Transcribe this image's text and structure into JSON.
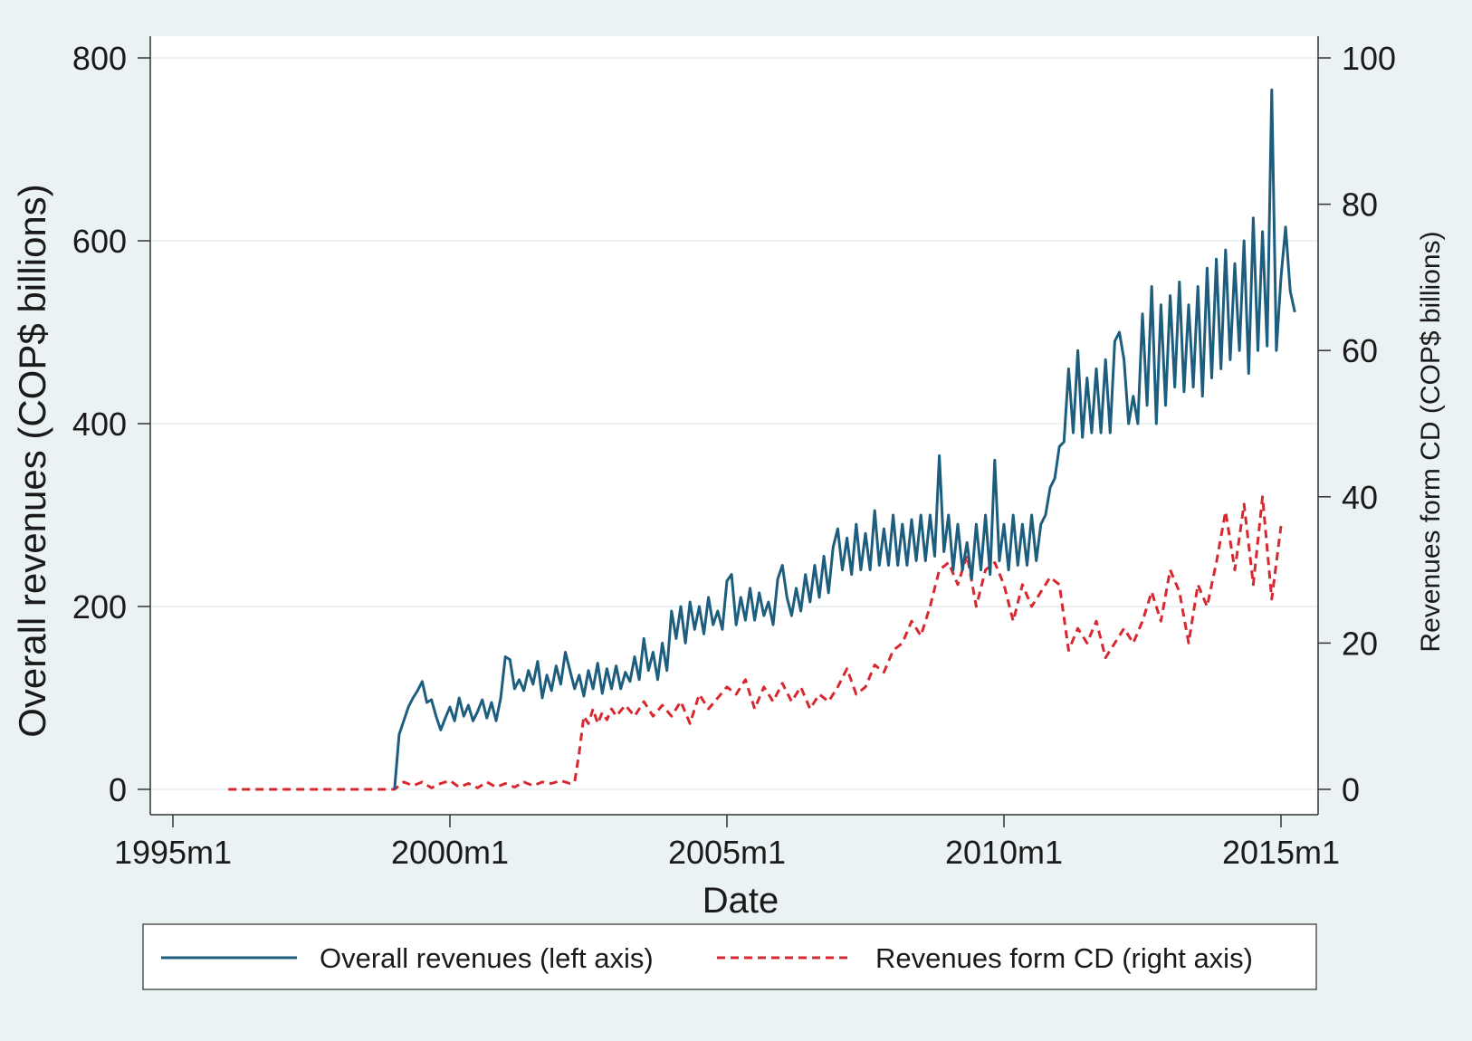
{
  "chart_data": {
    "type": "line",
    "title": "",
    "xlabel": "Date",
    "ylabel_left": "Overall revenues (COP$ billions)",
    "ylabel_right": "Revenues form CD (COP$ billions)",
    "x_ticks": [
      "1995m1",
      "2000m1",
      "2005m1",
      "2010m1",
      "2015m1"
    ],
    "xlim": [
      "1995m1",
      "2015m5"
    ],
    "y_left_ticks": [
      "0",
      "200",
      "400",
      "600",
      "800"
    ],
    "ylim_left": [
      0,
      800
    ],
    "y_right_ticks": [
      "0",
      "20",
      "40",
      "60",
      "80",
      "100"
    ],
    "ylim_right": [
      0,
      100
    ],
    "grid": true,
    "legend_position": "bottom",
    "series": [
      {
        "name": "Overall revenues (left axis)",
        "axis": "left",
        "color": "#1d5d7e",
        "style": "solid",
        "points": [
          [
            "1999m1",
            0
          ],
          [
            "1999m2",
            60
          ],
          [
            "1999m3",
            75
          ],
          [
            "1999m4",
            90
          ],
          [
            "1999m5",
            100
          ],
          [
            "1999m6",
            108
          ],
          [
            "1999m7",
            118
          ],
          [
            "1999m8",
            95
          ],
          [
            "1999m9",
            98
          ],
          [
            "1999m10",
            80
          ],
          [
            "1999m11",
            65
          ],
          [
            "1999m12",
            78
          ],
          [
            "2000m1",
            90
          ],
          [
            "2000m2",
            75
          ],
          [
            "2000m3",
            100
          ],
          [
            "2000m4",
            80
          ],
          [
            "2000m5",
            92
          ],
          [
            "2000m6",
            75
          ],
          [
            "2000m7",
            85
          ],
          [
            "2000m8",
            98
          ],
          [
            "2000m9",
            78
          ],
          [
            "2000m10",
            95
          ],
          [
            "2000m11",
            75
          ],
          [
            "2000m12",
            100
          ],
          [
            "2001m1",
            145
          ],
          [
            "2001m2",
            142
          ],
          [
            "2001m3",
            110
          ],
          [
            "2001m4",
            120
          ],
          [
            "2001m5",
            108
          ],
          [
            "2001m6",
            130
          ],
          [
            "2001m7",
            115
          ],
          [
            "2001m8",
            140
          ],
          [
            "2001m9",
            100
          ],
          [
            "2001m10",
            125
          ],
          [
            "2001m11",
            108
          ],
          [
            "2001m12",
            135
          ],
          [
            "2002m1",
            115
          ],
          [
            "2002m2",
            150
          ],
          [
            "2002m3",
            130
          ],
          [
            "2002m4",
            110
          ],
          [
            "2002m5",
            125
          ],
          [
            "2002m6",
            102
          ],
          [
            "2002m7",
            130
          ],
          [
            "2002m8",
            110
          ],
          [
            "2002m9",
            138
          ],
          [
            "2002m10",
            105
          ],
          [
            "2002m11",
            132
          ],
          [
            "2002m12",
            110
          ],
          [
            "2003m1",
            135
          ],
          [
            "2003m2",
            110
          ],
          [
            "2003m3",
            128
          ],
          [
            "2003m4",
            118
          ],
          [
            "2003m5",
            145
          ],
          [
            "2003m6",
            120
          ],
          [
            "2003m7",
            165
          ],
          [
            "2003m8",
            130
          ],
          [
            "2003m9",
            150
          ],
          [
            "2003m10",
            120
          ],
          [
            "2003m11",
            160
          ],
          [
            "2003m12",
            130
          ],
          [
            "2004m1",
            195
          ],
          [
            "2004m2",
            165
          ],
          [
            "2004m3",
            200
          ],
          [
            "2004m4",
            160
          ],
          [
            "2004m5",
            205
          ],
          [
            "2004m6",
            175
          ],
          [
            "2004m7",
            200
          ],
          [
            "2004m8",
            170
          ],
          [
            "2004m9",
            210
          ],
          [
            "2004m10",
            180
          ],
          [
            "2004m11",
            195
          ],
          [
            "2004m12",
            175
          ],
          [
            "2005m1",
            228
          ],
          [
            "2005m2",
            235
          ],
          [
            "2005m3",
            180
          ],
          [
            "2005m4",
            210
          ],
          [
            "2005m5",
            185
          ],
          [
            "2005m6",
            220
          ],
          [
            "2005m7",
            185
          ],
          [
            "2005m8",
            215
          ],
          [
            "2005m9",
            190
          ],
          [
            "2005m10",
            205
          ],
          [
            "2005m11",
            180
          ],
          [
            "2005m12",
            230
          ],
          [
            "2006m1",
            245
          ],
          [
            "2006m2",
            210
          ],
          [
            "2006m3",
            190
          ],
          [
            "2006m4",
            220
          ],
          [
            "2006m5",
            195
          ],
          [
            "2006m6",
            235
          ],
          [
            "2006m7",
            205
          ],
          [
            "2006m8",
            245
          ],
          [
            "2006m9",
            210
          ],
          [
            "2006m10",
            255
          ],
          [
            "2006m11",
            215
          ],
          [
            "2006m12",
            265
          ],
          [
            "2007m1",
            285
          ],
          [
            "2007m2",
            240
          ],
          [
            "2007m3",
            275
          ],
          [
            "2007m4",
            235
          ],
          [
            "2007m5",
            290
          ],
          [
            "2007m6",
            240
          ],
          [
            "2007m7",
            280
          ],
          [
            "2007m8",
            240
          ],
          [
            "2007m9",
            305
          ],
          [
            "2007m10",
            245
          ],
          [
            "2007m11",
            285
          ],
          [
            "2007m12",
            245
          ],
          [
            "2008m1",
            300
          ],
          [
            "2008m2",
            245
          ],
          [
            "2008m3",
            290
          ],
          [
            "2008m4",
            245
          ],
          [
            "2008m5",
            295
          ],
          [
            "2008m6",
            250
          ],
          [
            "2008m7",
            300
          ],
          [
            "2008m8",
            250
          ],
          [
            "2008m9",
            300
          ],
          [
            "2008m10",
            255
          ],
          [
            "2008m11",
            365
          ],
          [
            "2008m12",
            260
          ],
          [
            "2009m1",
            300
          ],
          [
            "2009m2",
            240
          ],
          [
            "2009m3",
            290
          ],
          [
            "2009m4",
            240
          ],
          [
            "2009m5",
            270
          ],
          [
            "2009m6",
            230
          ],
          [
            "2009m7",
            290
          ],
          [
            "2009m8",
            240
          ],
          [
            "2009m9",
            300
          ],
          [
            "2009m10",
            235
          ],
          [
            "2009m11",
            360
          ],
          [
            "2009m12",
            250
          ],
          [
            "2010m1",
            290
          ],
          [
            "2010m2",
            240
          ],
          [
            "2010m3",
            300
          ],
          [
            "2010m4",
            245
          ],
          [
            "2010m5",
            290
          ],
          [
            "2010m6",
            245
          ],
          [
            "2010m7",
            300
          ],
          [
            "2010m8",
            250
          ],
          [
            "2010m9",
            290
          ],
          [
            "2010m10",
            300
          ],
          [
            "2010m11",
            330
          ],
          [
            "2010m12",
            340
          ],
          [
            "2011m1",
            375
          ],
          [
            "2011m2",
            380
          ],
          [
            "2011m3",
            460
          ],
          [
            "2011m4",
            390
          ],
          [
            "2011m5",
            480
          ],
          [
            "2011m6",
            385
          ],
          [
            "2011m7",
            450
          ],
          [
            "2011m8",
            390
          ],
          [
            "2011m9",
            460
          ],
          [
            "2011m10",
            390
          ],
          [
            "2011m11",
            470
          ],
          [
            "2011m12",
            390
          ],
          [
            "2012m1",
            490
          ],
          [
            "2012m2",
            500
          ],
          [
            "2012m3",
            470
          ],
          [
            "2012m4",
            400
          ],
          [
            "2012m5",
            430
          ],
          [
            "2012m6",
            400
          ],
          [
            "2012m7",
            520
          ],
          [
            "2012m8",
            420
          ],
          [
            "2012m9",
            550
          ],
          [
            "2012m10",
            400
          ],
          [
            "2012m11",
            530
          ],
          [
            "2012m12",
            420
          ],
          [
            "2013m1",
            540
          ],
          [
            "2013m2",
            440
          ],
          [
            "2013m3",
            555
          ],
          [
            "2013m4",
            435
          ],
          [
            "2013m5",
            530
          ],
          [
            "2013m6",
            440
          ],
          [
            "2013m7",
            550
          ],
          [
            "2013m8",
            430
          ],
          [
            "2013m9",
            570
          ],
          [
            "2013m10",
            450
          ],
          [
            "2013m11",
            580
          ],
          [
            "2013m12",
            460
          ],
          [
            "2014m1",
            590
          ],
          [
            "2014m2",
            470
          ],
          [
            "2014m3",
            575
          ],
          [
            "2014m4",
            480
          ],
          [
            "2014m5",
            600
          ],
          [
            "2014m6",
            455
          ],
          [
            "2014m7",
            625
          ],
          [
            "2014m8",
            480
          ],
          [
            "2014m9",
            610
          ],
          [
            "2014m10",
            485
          ],
          [
            "2014m11",
            765
          ],
          [
            "2014m12",
            480
          ],
          [
            "2015m1",
            560
          ],
          [
            "2015m2",
            615
          ],
          [
            "2015m3",
            545
          ],
          [
            "2015m4",
            522
          ]
        ]
      },
      {
        "name": "Revenues form CD (right axis)",
        "axis": "right",
        "color": "#d7282f",
        "style": "dashed",
        "points": [
          [
            "1996m1",
            0
          ],
          [
            "1999m1",
            0
          ],
          [
            "1999m3",
            1
          ],
          [
            "1999m5",
            0.5
          ],
          [
            "1999m7",
            1
          ],
          [
            "1999m9",
            0.2
          ],
          [
            "1999m11",
            0.8
          ],
          [
            "2000m1",
            1.2
          ],
          [
            "2000m3",
            0.3
          ],
          [
            "2000m5",
            0.8
          ],
          [
            "2000m7",
            0.2
          ],
          [
            "2000m9",
            1
          ],
          [
            "2000m11",
            0.3
          ],
          [
            "2001m1",
            0.8
          ],
          [
            "2001m3",
            0.3
          ],
          [
            "2001m5",
            1
          ],
          [
            "2001m7",
            0.5
          ],
          [
            "2001m9",
            1
          ],
          [
            "2001m11",
            0.8
          ],
          [
            "2002m1",
            1.2
          ],
          [
            "2002m3",
            0.8
          ],
          [
            "2002m4",
            1
          ],
          [
            "2002m5",
            5
          ],
          [
            "2002m6",
            10
          ],
          [
            "2002m7",
            9
          ],
          [
            "2002m8",
            11
          ],
          [
            "2002m9",
            9
          ],
          [
            "2002m10",
            10.5
          ],
          [
            "2002m11",
            9.5
          ],
          [
            "2002m12",
            11
          ],
          [
            "2003m1",
            10
          ],
          [
            "2003m3",
            11.5
          ],
          [
            "2003m5",
            10
          ],
          [
            "2003m7",
            12
          ],
          [
            "2003m9",
            10
          ],
          [
            "2003m11",
            11.5
          ],
          [
            "2004m1",
            10
          ],
          [
            "2004m3",
            12
          ],
          [
            "2004m5",
            9
          ],
          [
            "2004m7",
            13
          ],
          [
            "2004m9",
            11
          ],
          [
            "2004m11",
            12.5
          ],
          [
            "2005m1",
            14
          ],
          [
            "2005m3",
            13
          ],
          [
            "2005m5",
            15
          ],
          [
            "2005m7",
            11
          ],
          [
            "2005m9",
            14
          ],
          [
            "2005m11",
            12
          ],
          [
            "2006m1",
            14.5
          ],
          [
            "2006m3",
            12
          ],
          [
            "2006m5",
            14
          ],
          [
            "2006m7",
            11
          ],
          [
            "2006m9",
            13
          ],
          [
            "2006m11",
            12
          ],
          [
            "2007m1",
            14
          ],
          [
            "2007m3",
            16.5
          ],
          [
            "2007m5",
            13
          ],
          [
            "2007m7",
            14
          ],
          [
            "2007m9",
            17
          ],
          [
            "2007m11",
            16
          ],
          [
            "2008m1",
            19
          ],
          [
            "2008m3",
            20
          ],
          [
            "2008m5",
            23
          ],
          [
            "2008m7",
            21
          ],
          [
            "2008m9",
            25
          ],
          [
            "2008m11",
            30
          ],
          [
            "2009m1",
            31
          ],
          [
            "2009m3",
            28
          ],
          [
            "2009m5",
            32
          ],
          [
            "2009m7",
            25
          ],
          [
            "2009m9",
            30
          ],
          [
            "2009m11",
            31
          ],
          [
            "2010m1",
            28
          ],
          [
            "2010m3",
            23
          ],
          [
            "2010m5",
            28
          ],
          [
            "2010m7",
            25
          ],
          [
            "2010m9",
            27
          ],
          [
            "2010m11",
            29
          ],
          [
            "2011m1",
            28
          ],
          [
            "2011m3",
            19
          ],
          [
            "2011m5",
            22
          ],
          [
            "2011m7",
            20
          ],
          [
            "2011m9",
            23
          ],
          [
            "2011m11",
            18
          ],
          [
            "2012m1",
            20
          ],
          [
            "2012m3",
            22
          ],
          [
            "2012m5",
            20
          ],
          [
            "2012m7",
            23
          ],
          [
            "2012m9",
            27
          ],
          [
            "2012m11",
            23
          ],
          [
            "2013m1",
            30
          ],
          [
            "2013m3",
            27
          ],
          [
            "2013m5",
            20
          ],
          [
            "2013m7",
            28
          ],
          [
            "2013m9",
            25
          ],
          [
            "2013m11",
            31
          ],
          [
            "2014m1",
            38
          ],
          [
            "2014m3",
            30
          ],
          [
            "2014m5",
            39
          ],
          [
            "2014m7",
            28
          ],
          [
            "2014m9",
            40
          ],
          [
            "2014m11",
            26
          ],
          [
            "2015m1",
            36
          ]
        ]
      }
    ]
  }
}
